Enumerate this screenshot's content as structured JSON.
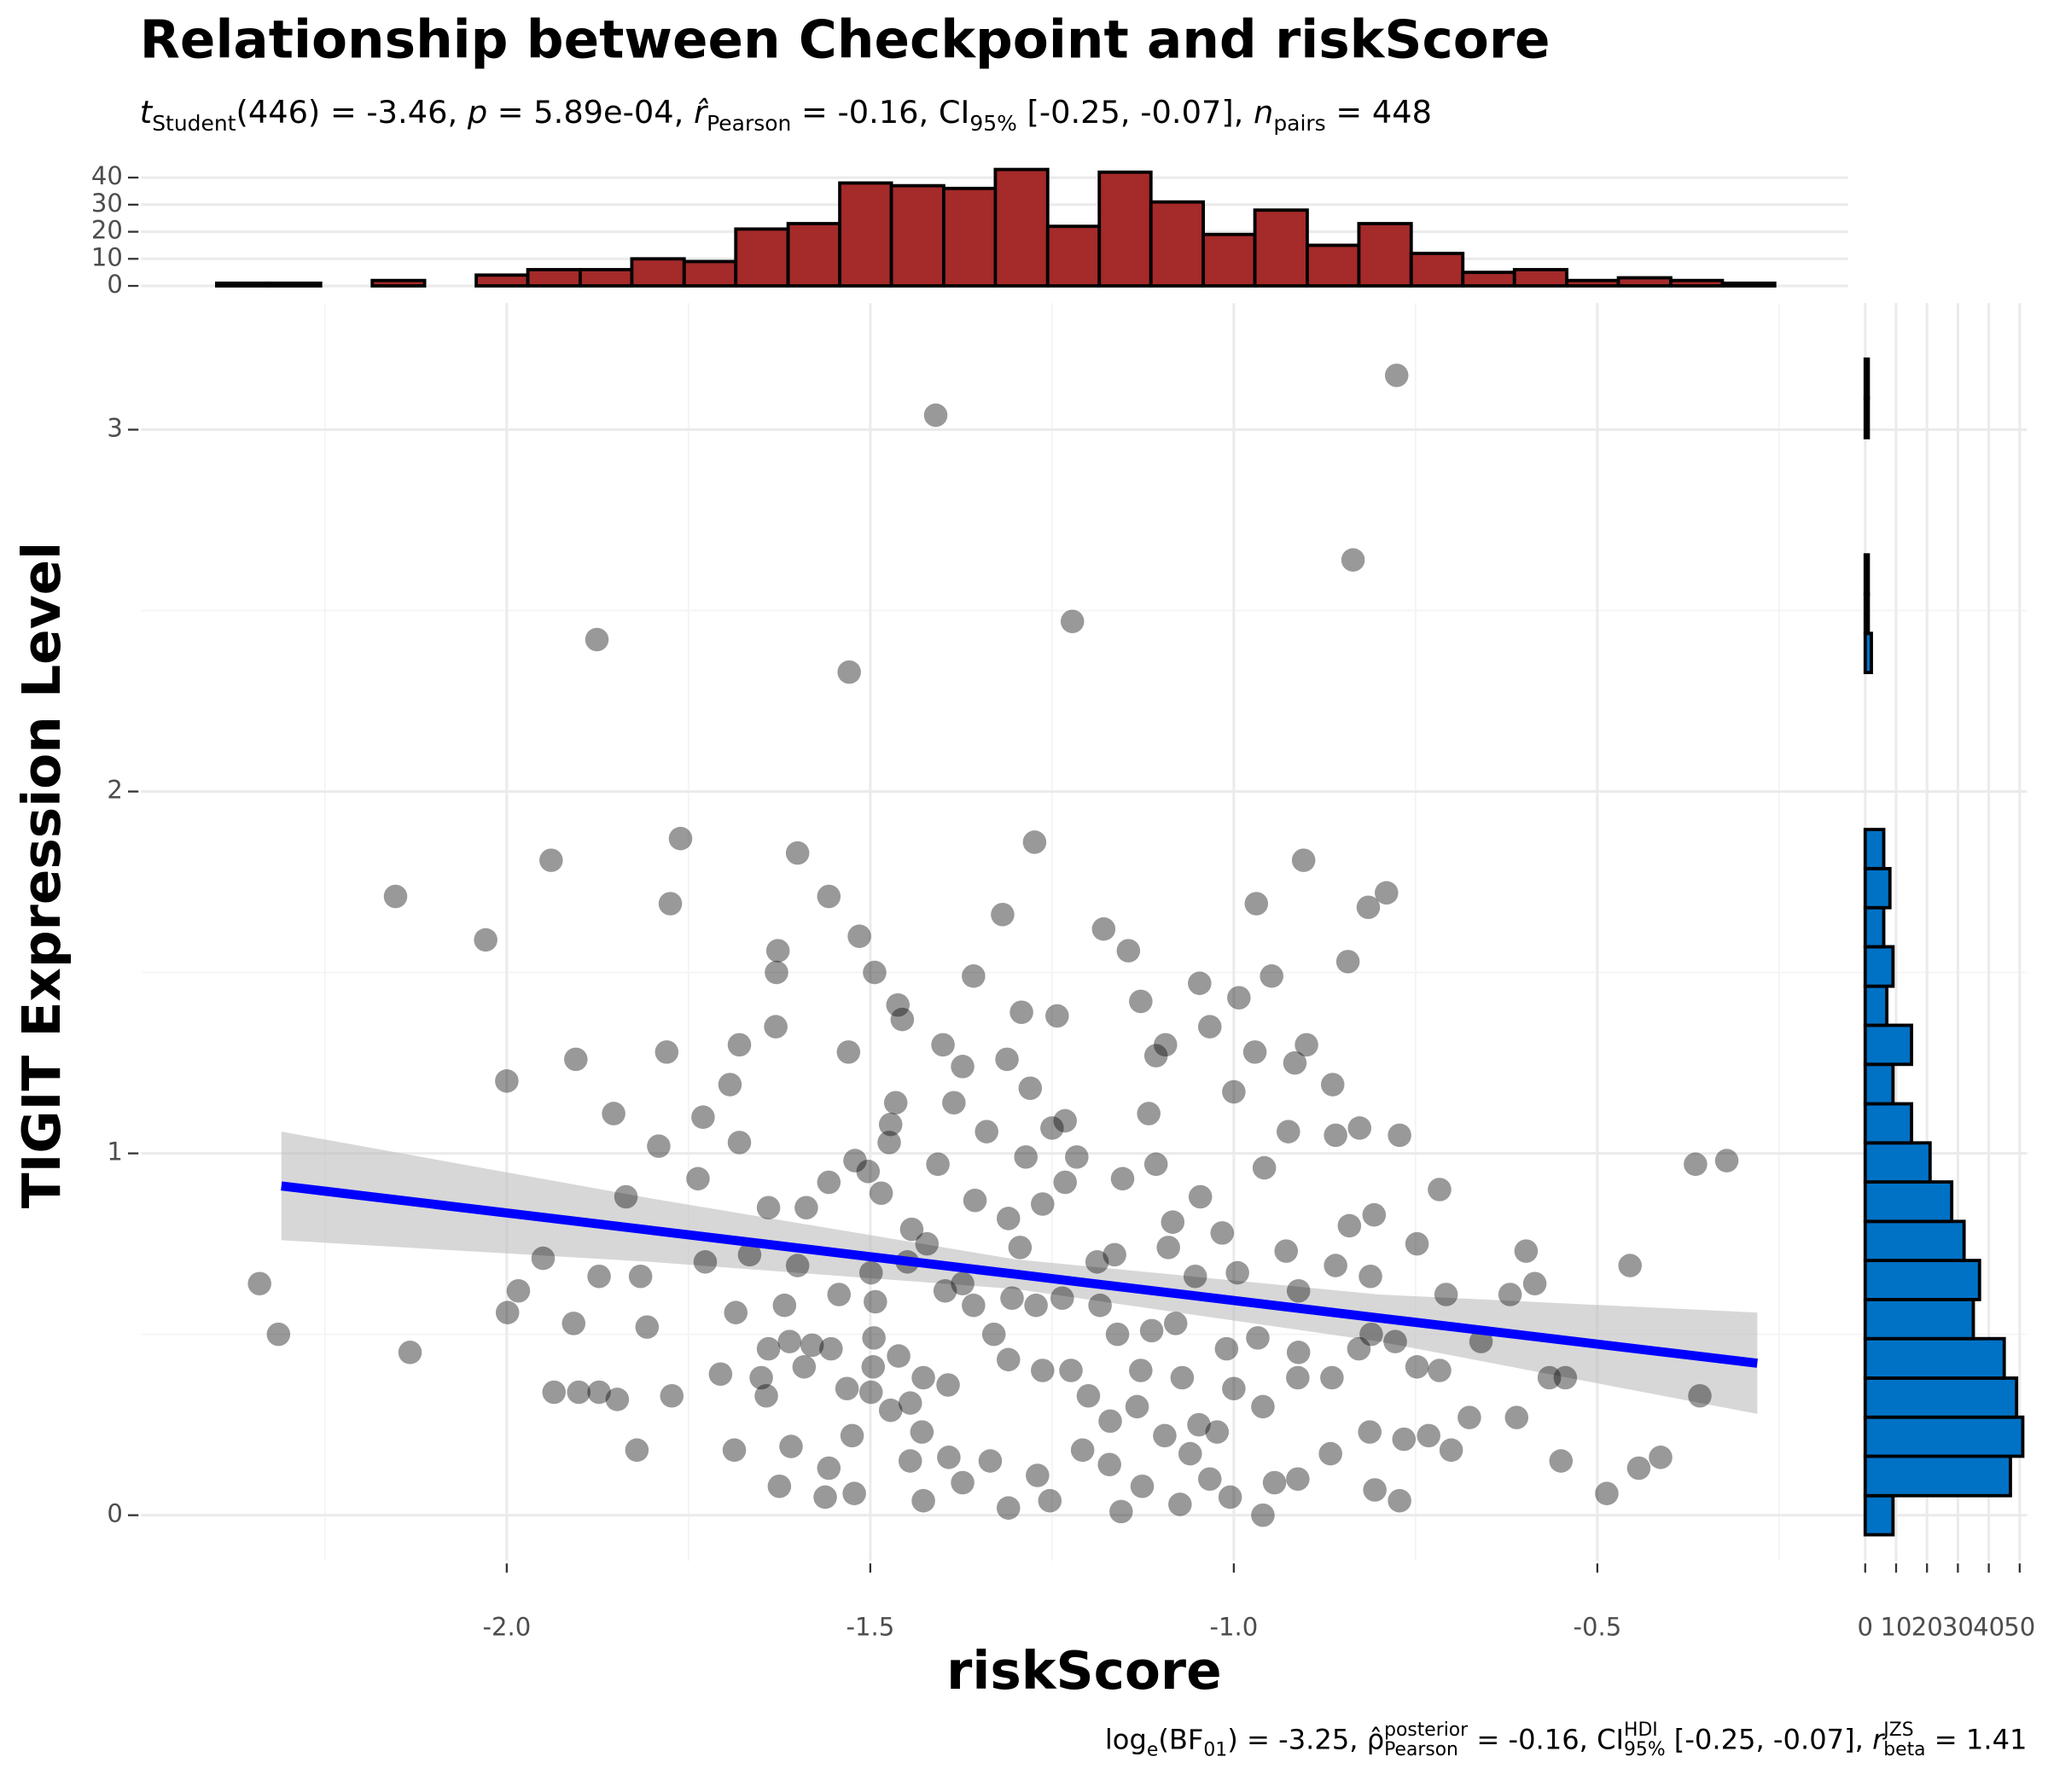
{
  "chart_data": [
    {
      "type": "scatter",
      "title": "Relationship between Checkpoint and riskScore",
      "subtitle": [
        "t",
        "Student",
        "(446) = -3.46, ",
        "p",
        " = 5.89e-04, ",
        "r̂",
        "Pearson",
        " = -0.16, CI",
        "95%",
        " [-0.25, -0.07], ",
        "n",
        "pairs",
        " = 448"
      ],
      "caption": [
        "log",
        "e",
        "(BF",
        "01",
        ") = -3.25, ",
        "ρ̂",
        "posterior",
        "Pearson",
        " = -0.16, CI",
        "HDI",
        "95%",
        " [-0.25, -0.07], ",
        "r",
        "JZS",
        "beta",
        " = 1.41"
      ],
      "x_label": "riskScore",
      "y_label": "TIGIT Expression Level",
      "xlim": [
        -2.503,
        -0.155
      ],
      "ylim": [
        -0.126,
        3.35
      ],
      "xticks": [
        {
          "value": -2,
          "label": "-2.0"
        },
        {
          "value": -1.5,
          "label": "-1.5"
        },
        {
          "value": -1,
          "label": "-1.0"
        },
        {
          "value": -0.5,
          "label": "-0.5"
        }
      ],
      "yticks": [
        0,
        1,
        2,
        3
      ],
      "grid": true,
      "color": "#000000",
      "x": [
        -0.776,
        -1.41,
        -0.836,
        -1.876,
        -1.222,
        -1.529,
        -1.761,
        -1.274,
        -2.153,
        -1.939,
        -1.6,
        -1.775,
        -1.557,
        -2.029,
        -0.904,
        -0.79,
        -0.969,
        -0.815,
        -1.627,
        -1.515,
        -1.179,
        -1.318,
        -2.0,
        -1.905,
        -1.853,
        -1.78,
        -1.68,
        -1.693,
        -1.73,
        -1.791,
        -1.68,
        -1.737,
        -1.63,
        -1.629,
        -1.53,
        -1.494,
        -1.462,
        -1.456,
        -1.4,
        -1.373,
        -1.358,
        -1.292,
        -1.243,
        -1.312,
        -1.28,
        -1.145,
        -1.128,
        -1.094,
        -1.107,
        -1.047,
        -1.033,
        -0.993,
        -0.948,
        -0.971,
        -0.9,
        -0.916,
        -1.0,
        -0.864,
        -0.843,
        -0.925,
        -0.827,
        -0.86,
        -0.772,
        -0.717,
        -0.365,
        -0.322,
        -1.232,
        -1.25,
        -1.216,
        -1.117,
        -1.153,
        -1.474,
        -1.472,
        -1.465,
        -1.385,
        -1.34,
        -1.407,
        -1.356,
        -1.286,
        -1.263,
        -1.232,
        -1.107,
        -1.046,
        -0.958,
        -1.016,
        -0.928,
        -0.841,
        -0.807,
        -0.748,
        -0.86,
        -0.812,
        -0.598,
        -0.586,
        -0.62,
        -0.708,
        -0.66,
        -0.455,
        -2.34,
        -2.314,
        -2.133,
        -1.999,
        -1.984,
        -1.95,
        -1.873,
        -1.908,
        -1.836,
        -1.816,
        -1.807,
        -1.935,
        -1.901,
        -1.873,
        -1.848,
        -1.821,
        -1.773,
        -1.727,
        -1.706,
        -1.685,
        -1.687,
        -1.625,
        -1.562,
        -1.609,
        -1.557,
        -1.522,
        -1.643,
        -1.65,
        -1.64,
        -1.611,
        -1.618,
        -1.591,
        -1.525,
        -1.532,
        -1.495,
        -1.499,
        -1.472,
        -1.445,
        -1.429,
        -1.445,
        -1.427,
        -1.392,
        -1.373,
        -1.335,
        -1.31,
        -1.27,
        -1.253,
        -1.208,
        -1.171,
        -1.155,
        -1.126,
        -1.074,
        -1.033,
        -1.005,
        -0.96,
        -0.944,
        -0.912,
        -0.867,
        -0.806,
        -0.772,
        -0.813,
        -0.766,
        -0.732,
        -0.701,
        -0.676,
        -0.611,
        -0.55,
        -0.487,
        -0.443,
        -0.413,
        -0.359,
        -0.566,
        -0.544,
        -0.748,
        -0.717,
        -0.865,
        -0.912,
        -0.96,
        -1.0,
        -1.023,
        -1.06,
        -1.095,
        -1.133,
        -1.17,
        -1.2,
        -1.224,
        -1.263,
        -1.31,
        -1.33,
        -1.358,
        -1.305,
        -1.272,
        -1.236,
        -1.184,
        -1.16,
        -1.113,
        -1.08,
        -1.01,
        -0.967,
        -0.911,
        -0.828,
        -0.778,
        -1.128,
        -1.071,
        -1.427,
        -1.393,
        -1.461,
        -1.496,
        -1.554,
        -1.58,
        -1.543,
        -1.499,
        -1.443,
        -1.422,
        -1.373,
        -1.397,
        -1.493,
        -1.6,
        -1.666,
        -1.588,
        -1.64,
        -1.557,
        -1.521,
        -1.503,
        -1.485,
        -1.449,
        -1.31,
        -1.294,
        -1.164,
        -1.188,
        -1.084,
        -1.09,
        -1.053,
        -0.995,
        -0.911,
        -1.048,
        -0.811
      ],
      "y": [
        3.15,
        3.04,
        2.64,
        2.42,
        2.47,
        2.33,
        1.87,
        1.86,
        1.71,
        1.81,
        1.83,
        1.69,
        1.71,
        1.59,
        1.81,
        1.72,
        1.69,
        1.68,
        1.56,
        1.6,
        1.62,
        1.66,
        1.2,
        1.26,
        1.11,
        1.28,
        1.3,
        1.19,
        1.1,
        1.02,
        1.03,
        0.93,
        1.35,
        1.5,
        1.28,
        1.5,
        1.41,
        1.37,
        1.3,
        1.24,
        1.49,
        1.39,
        1.38,
        1.26,
        1.18,
        1.56,
        1.42,
        1.3,
        1.27,
        1.47,
        1.35,
        1.43,
        1.49,
        1.28,
        1.3,
        1.25,
        1.17,
        1.19,
        1.53,
        1.06,
        1.07,
        1.05,
        1.05,
        0.9,
        0.97,
        0.98,
        1.09,
        1.07,
        0.99,
        1.11,
        0.93,
        1.03,
        1.08,
        1.14,
        1.14,
        1.06,
        0.97,
        0.87,
        0.99,
        0.86,
        0.92,
        0.97,
        0.88,
        0.96,
        0.78,
        0.73,
        0.8,
        0.83,
        0.75,
        0.69,
        0.66,
        0.73,
        0.64,
        0.61,
        0.61,
        0.48,
        0.69,
        0.64,
        0.5,
        0.45,
        0.56,
        0.62,
        0.71,
        0.66,
        0.53,
        0.88,
        0.66,
        0.52,
        0.34,
        0.34,
        0.34,
        0.32,
        0.18,
        0.33,
        0.7,
        0.39,
        0.56,
        0.18,
        0.08,
        0.05,
        0.19,
        0.13,
        0.06,
        0.33,
        0.38,
        0.46,
        0.48,
        0.58,
        0.41,
        0.22,
        0.35,
        0.49,
        0.34,
        0.29,
        0.31,
        0.23,
        0.15,
        0.04,
        0.16,
        0.09,
        0.15,
        0.02,
        0.11,
        0.04,
        0.18,
        0.14,
        0.01,
        0.08,
        0.03,
        0.1,
        0.05,
        0.0,
        0.09,
        0.1,
        0.17,
        0.07,
        0.04,
        0.23,
        0.21,
        0.22,
        0.18,
        0.27,
        0.27,
        0.15,
        0.06,
        0.13,
        0.16,
        0.33,
        0.38,
        0.38,
        0.41,
        0.4,
        0.38,
        0.38,
        0.3,
        0.35,
        0.23,
        0.17,
        0.22,
        0.3,
        0.26,
        0.33,
        0.4,
        0.4,
        0.43,
        0.5,
        0.58,
        0.6,
        0.58,
        0.6,
        0.58,
        0.5,
        0.51,
        0.53,
        0.46,
        0.49,
        0.45,
        0.46,
        0.48,
        0.4,
        0.38,
        0.38,
        0.36,
        0.44,
        0.41,
        0.46,
        0.47,
        0.61,
        0.67,
        0.79,
        0.75,
        0.64,
        0.62,
        0.59,
        0.69,
        0.72,
        0.85,
        0.85,
        0.92,
        0.98,
        0.95,
        0.89,
        0.7,
        0.82,
        0.74,
        0.72,
        0.7,
        0.81,
        0.74,
        0.66,
        0.67,
        0.62,
        0.25,
        0.5
      ],
      "fit": {
        "color": "#0000ff",
        "band_color": "#bdbdbd",
        "x": [
          -2.31,
          -1.8,
          -1.3,
          -0.8,
          -0.28
        ],
        "y": [
          0.91,
          0.787,
          0.666,
          0.545,
          0.42
        ],
        "ci_lower": [
          0.76,
          0.7,
          0.625,
          0.48,
          0.28
        ],
        "ci_upper": [
          1.06,
          0.875,
          0.707,
          0.61,
          0.56
        ]
      }
    },
    {
      "type": "histogram",
      "orientation": "vertical",
      "color": "#a52a2a",
      "xlim": [
        -2.503,
        -0.155
      ],
      "ylim": [
        -1.5,
        47.7
      ],
      "yticks": [
        0,
        10,
        20,
        30,
        40
      ],
      "bins": [
        -2.399,
        -2.328,
        -2.256,
        -2.185,
        -2.113,
        -2.042,
        -1.971,
        -1.899,
        -1.828,
        -1.756,
        -1.685,
        -1.613,
        -1.542,
        -1.471,
        -1.399,
        -1.328,
        -1.256,
        -1.185,
        -1.114,
        -1.042,
        -0.971,
        -0.899,
        -0.828,
        -0.756,
        -0.685,
        -0.614,
        -0.542,
        -0.471,
        -0.399,
        -0.328,
        -0.256
      ],
      "values": [
        1,
        1,
        0,
        2,
        0,
        4,
        6,
        6,
        10,
        9,
        21,
        23,
        38,
        37,
        36,
        43,
        22,
        42,
        31,
        19,
        28,
        15,
        23,
        12,
        5,
        6,
        2,
        3,
        2,
        1
      ]
    },
    {
      "type": "histogram",
      "orientation": "horizontal",
      "color": "#0072c6",
      "xlim": [
        -3.4,
        52.4
      ],
      "ylim": [
        -0.126,
        3.35
      ],
      "xticks": [
        0,
        10,
        20,
        30,
        40,
        50
      ],
      "bins": [
        -0.054,
        0.054,
        0.163,
        0.271,
        0.379,
        0.488,
        0.596,
        0.704,
        0.812,
        0.921,
        1.029,
        1.137,
        1.246,
        1.354,
        1.462,
        1.571,
        1.679,
        1.787,
        1.895,
        2.004,
        2.112,
        2.22,
        2.329,
        2.437,
        2.545,
        2.654,
        2.762,
        2.87,
        2.978,
        3.087,
        3.195
      ],
      "values": [
        9,
        47,
        51,
        49,
        45,
        35,
        37,
        32,
        28,
        21,
        15,
        9,
        15,
        7,
        9,
        6,
        8,
        6,
        0,
        0,
        0,
        0,
        2,
        1,
        1,
        0,
        0,
        0,
        1,
        1
      ]
    }
  ]
}
